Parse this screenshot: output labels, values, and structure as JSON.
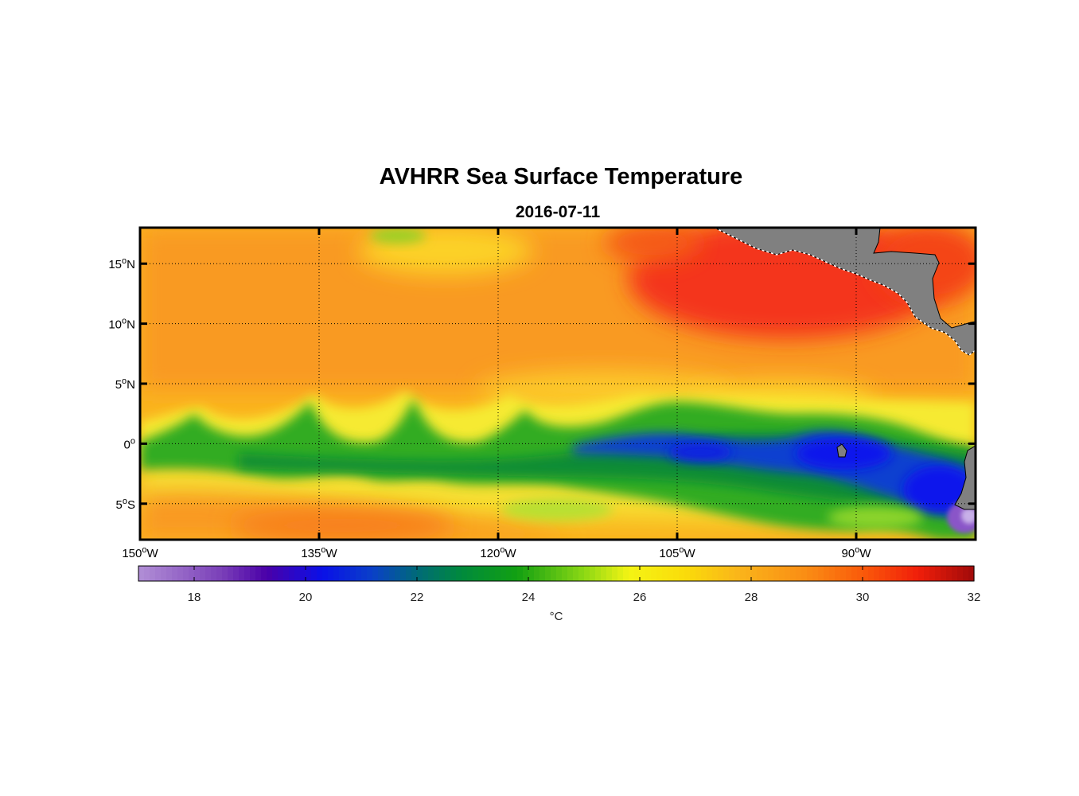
{
  "title": "AVHRR Sea Surface Temperature",
  "date": "2016-07-11",
  "map": {
    "lon_range": [
      -150,
      -80
    ],
    "lat_range": [
      -8,
      18
    ],
    "lon_ticks": [
      {
        "value": -150,
        "label": "150",
        "sup": "o",
        "hemi": "W"
      },
      {
        "value": -135,
        "label": "135",
        "sup": "o",
        "hemi": "W"
      },
      {
        "value": -120,
        "label": "120",
        "sup": "o",
        "hemi": "W"
      },
      {
        "value": -105,
        "label": "105",
        "sup": "o",
        "hemi": "W"
      },
      {
        "value": -90,
        "label": "90",
        "sup": "o",
        "hemi": "W"
      }
    ],
    "lat_ticks": [
      {
        "value": 15,
        "label": "15",
        "sup": "o",
        "hemi": "N"
      },
      {
        "value": 10,
        "label": "10",
        "sup": "o",
        "hemi": "N"
      },
      {
        "value": 5,
        "label": "5",
        "sup": "o",
        "hemi": "N"
      },
      {
        "value": 0,
        "label": "0",
        "sup": "o",
        "hemi": ""
      },
      {
        "value": -5,
        "label": "5",
        "sup": "o",
        "hemi": "S"
      }
    ],
    "land_color": "#808080"
  },
  "colorbar": {
    "range": [
      17,
      32
    ],
    "ticks": [
      18,
      20,
      22,
      24,
      26,
      28,
      30,
      32
    ],
    "unit": "°C",
    "stops": [
      {
        "v": 17,
        "c": "#b18fd6"
      },
      {
        "v": 18.5,
        "c": "#7a3fb8"
      },
      {
        "v": 19.3,
        "c": "#4a00a8"
      },
      {
        "v": 20.3,
        "c": "#0a10e8"
      },
      {
        "v": 21.2,
        "c": "#0a40c8"
      },
      {
        "v": 22,
        "c": "#006a78"
      },
      {
        "v": 22.8,
        "c": "#008a3c"
      },
      {
        "v": 23.8,
        "c": "#12a012"
      },
      {
        "v": 25,
        "c": "#8cd814"
      },
      {
        "v": 25.8,
        "c": "#f4f414"
      },
      {
        "v": 26.8,
        "c": "#fadc0a"
      },
      {
        "v": 27.8,
        "c": "#fab41a"
      },
      {
        "v": 29,
        "c": "#fa8c14"
      },
      {
        "v": 30,
        "c": "#fa5a0a"
      },
      {
        "v": 31,
        "c": "#f01e0a"
      },
      {
        "v": 32,
        "c": "#a00a0a"
      }
    ]
  }
}
